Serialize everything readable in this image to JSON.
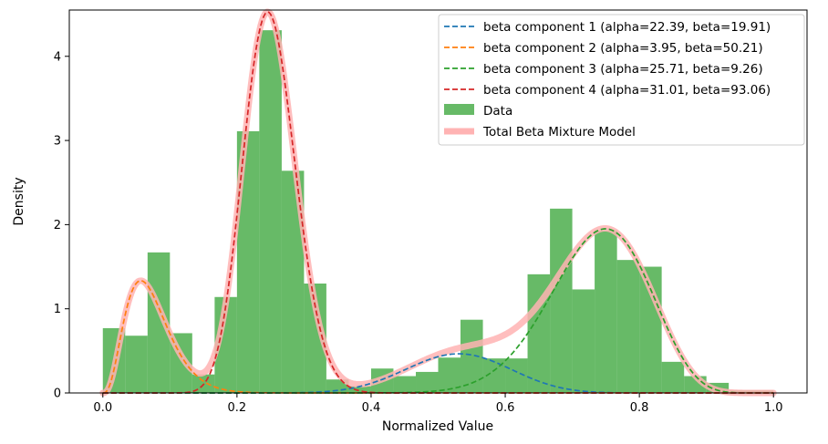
{
  "chart_data": {
    "type": "bar",
    "xlabel": "Normalized Value",
    "ylabel": "Density",
    "xlim": [
      -0.05,
      1.05
    ],
    "ylim": [
      0,
      4.55
    ],
    "x_ticks": [
      0.0,
      0.2,
      0.4,
      0.6,
      0.8,
      1.0
    ],
    "x_tick_labels": [
      "0.0",
      "0.2",
      "0.4",
      "0.6",
      "0.8",
      "1.0"
    ],
    "y_ticks": [
      0,
      1,
      2,
      3,
      4
    ],
    "y_tick_labels": [
      "0",
      "1",
      "2",
      "3",
      "4"
    ],
    "grid": false,
    "legend_position": "top-right",
    "histogram": {
      "name": "Data",
      "color": "#2ca02c",
      "bin_edges": [
        0.0,
        0.0333,
        0.0667,
        0.1,
        0.1333,
        0.1667,
        0.2,
        0.2333,
        0.2667,
        0.3,
        0.3333,
        0.3667,
        0.4,
        0.4333,
        0.4667,
        0.5,
        0.5333,
        0.5667,
        0.6,
        0.6333,
        0.6667,
        0.7,
        0.7333,
        0.7667,
        0.8,
        0.8333,
        0.8667,
        0.9,
        0.9333,
        0.9667,
        1.0
      ],
      "densities": [
        0.77,
        0.68,
        1.67,
        0.71,
        0.22,
        1.14,
        3.11,
        4.31,
        2.64,
        1.3,
        0.16,
        0.08,
        0.29,
        0.2,
        0.25,
        0.42,
        0.87,
        0.41,
        0.41,
        1.41,
        2.19,
        1.23,
        1.93,
        1.58,
        1.5,
        0.37,
        0.2,
        0.12,
        0.03,
        0.03
      ]
    },
    "series": [
      {
        "name": "beta component 1 (alpha=22.39, beta=19.91)",
        "color": "#1f77b4",
        "style": "dashed",
        "dist": {
          "alpha": 22.39,
          "beta": 19.91,
          "weight": 0.09
        }
      },
      {
        "name": "beta component 2 (alpha=3.95, beta=50.21)",
        "color": "#ff7f0e",
        "style": "dashed",
        "dist": {
          "alpha": 3.95,
          "beta": 50.21,
          "weight": 0.108
        }
      },
      {
        "name": "beta component 3 (alpha=25.71, beta=9.26)",
        "color": "#2ca02c",
        "style": "dashed",
        "dist": {
          "alpha": 25.71,
          "beta": 9.26,
          "weight": 0.362
        }
      },
      {
        "name": "beta component 4 (alpha=31.01, beta=93.06)",
        "color": "#d62728",
        "style": "dashed",
        "dist": {
          "alpha": 31.01,
          "beta": 93.06,
          "weight": 0.44
        }
      }
    ],
    "total_series": {
      "name": "Total Beta Mixture Model",
      "color": "#ffb3b3"
    }
  }
}
